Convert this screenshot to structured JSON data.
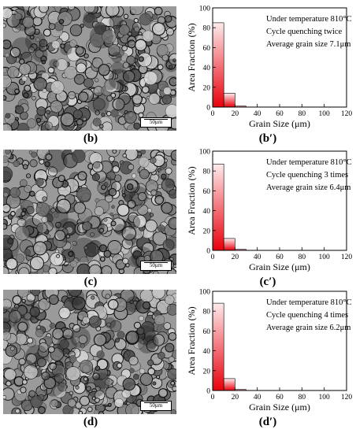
{
  "panels": [
    {
      "micro_label": "(b)",
      "chart_label": "(b′)",
      "scale_bar_text": "50μm"
    },
    {
      "micro_label": "(c)",
      "chart_label": "(c′)",
      "scale_bar_text": "50μm"
    },
    {
      "micro_label": "(d)",
      "chart_label": "(d′)",
      "scale_bar_text": "50μm"
    }
  ],
  "chart_data": [
    {
      "type": "bar",
      "xlabel": "Grain Size (μm)",
      "ylabel": "Area Fraction (%)",
      "xlim": [
        0,
        120
      ],
      "ylim": [
        0,
        100
      ],
      "xticks": [
        0,
        20,
        40,
        60,
        80,
        100,
        120
      ],
      "yticks": [
        0,
        20,
        40,
        60,
        80,
        100
      ],
      "bins": [
        [
          0,
          10
        ],
        [
          10,
          20
        ],
        [
          20,
          30
        ]
      ],
      "values": [
        85,
        14,
        1
      ],
      "annotations": [
        "Under temperature 810°C",
        "Cycle quenching twice",
        "Average grain size 7.1μm"
      ],
      "bar_color": "#e8000b"
    },
    {
      "type": "bar",
      "xlabel": "Grain Size (μm)",
      "ylabel": "Area Fraction (%)",
      "xlim": [
        0,
        120
      ],
      "ylim": [
        0,
        100
      ],
      "xticks": [
        0,
        20,
        40,
        60,
        80,
        100,
        120
      ],
      "yticks": [
        0,
        20,
        40,
        60,
        80,
        100
      ],
      "bins": [
        [
          0,
          10
        ],
        [
          10,
          20
        ],
        [
          20,
          30
        ]
      ],
      "values": [
        87,
        12,
        1
      ],
      "annotations": [
        "Under temperature 810°C",
        "Cycle quenching 3 times",
        "Average grain size 6.4μm"
      ],
      "bar_color": "#e8000b"
    },
    {
      "type": "bar",
      "xlabel": "Grain Size (μm)",
      "ylabel": "Area Fraction (%)",
      "xlim": [
        0,
        120
      ],
      "ylim": [
        0,
        100
      ],
      "xticks": [
        0,
        20,
        40,
        60,
        80,
        100,
        120
      ],
      "yticks": [
        0,
        20,
        40,
        60,
        80,
        100
      ],
      "bins": [
        [
          0,
          10
        ],
        [
          10,
          20
        ],
        [
          20,
          30
        ]
      ],
      "values": [
        88,
        12,
        1
      ],
      "annotations": [
        "Under temperature 810°C",
        "Cycle quenching 4 times",
        "Average grain size 6.2μm"
      ],
      "bar_color": "#e8000b"
    }
  ]
}
